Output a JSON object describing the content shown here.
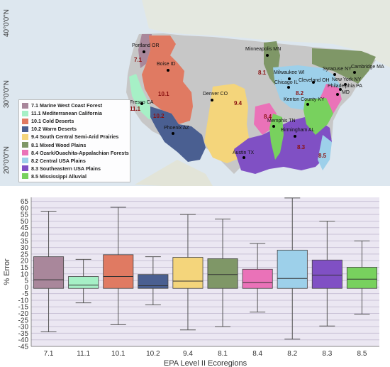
{
  "map": {
    "lat_labels": [
      "40°0'0\"N",
      "30°0'0\"N",
      "20°0'0\"N"
    ],
    "cities": [
      {
        "name": "Portland OR"
      },
      {
        "name": "Boise ID"
      },
      {
        "name": "Fresno CA"
      },
      {
        "name": "Phoenix AZ"
      },
      {
        "name": "Denver CO"
      },
      {
        "name": "Austin TX"
      },
      {
        "name": "Minneapolis MN"
      },
      {
        "name": "Milwaukee WI"
      },
      {
        "name": "Chicago IL"
      },
      {
        "name": "Cleveland OH"
      },
      {
        "name": "Memphis TN"
      },
      {
        "name": "Kenton County KY"
      },
      {
        "name": "Birmingham AL"
      },
      {
        "name": "Syracuse NY"
      },
      {
        "name": "Cambridge MA"
      },
      {
        "name": "New York NY"
      },
      {
        "name": "Philadelphia PA"
      },
      {
        "name": "MD"
      }
    ],
    "region_labels": [
      "7.1",
      "11.1",
      "10.1",
      "10.2",
      "9.4",
      "8.1",
      "8.4",
      "8.2",
      "8.3",
      "8.5"
    ],
    "legend": [
      {
        "label": "7.1 Marine West Coast Forest",
        "color": "#a9879b"
      },
      {
        "label": "11.1 Mediterranean California",
        "color": "#a6f0c6"
      },
      {
        "label": "10.1 Cold Deserts",
        "color": "#e07a62"
      },
      {
        "label": "10.2 Warm Deserts",
        "color": "#4a5f91"
      },
      {
        "label": "9.4 South Central Semi-Arid Prairies",
        "color": "#f4d57b"
      },
      {
        "label": "8.1 Mixed Wood Plains",
        "color": "#7f9767"
      },
      {
        "label": "8.4 Ozark/Ouachita-Appalachian Forests",
        "color": "#ea72b8"
      },
      {
        "label": "8.2 Central USA Plains",
        "color": "#9dd0ea"
      },
      {
        "label": "8.3 Southeastern USA Plains",
        "color": "#8050c4"
      },
      {
        "label": "8.5 Mississippi Alluvial",
        "color": "#78d15e"
      }
    ]
  },
  "chart_data": {
    "type": "box",
    "xlabel": "EPA Level II Ecoregions",
    "ylabel": "% Error",
    "ylim": [
      -45,
      68
    ],
    "yticks": [
      65,
      60,
      55,
      50,
      45,
      40,
      35,
      30,
      25,
      20,
      15,
      10,
      5,
      0,
      -5,
      -10,
      -15,
      -20,
      -25,
      -30,
      -35,
      -40,
      -45
    ],
    "grid": true,
    "categories": [
      "7.1",
      "11.1",
      "10.1",
      "10.2",
      "9.4",
      "8.1",
      "8.4",
      "8.2",
      "8.3",
      "8.5"
    ],
    "colors": [
      "#a9879b",
      "#a6f0c6",
      "#e07a62",
      "#4a5f91",
      "#f4d57b",
      "#7f9767",
      "#ea72b8",
      "#9dd0ea",
      "#8050c4",
      "#78d15e"
    ],
    "boxes": [
      {
        "whisker_low": -34,
        "q1": -1,
        "median": 5.5,
        "q3": 23,
        "whisker_high": 57.5
      },
      {
        "whisker_low": -12,
        "q1": -1,
        "median": 1.5,
        "q3": 8,
        "whisker_high": 21
      },
      {
        "whisker_low": -28.5,
        "q1": -1,
        "median": 8,
        "q3": 24.5,
        "whisker_high": 60.5
      },
      {
        "whisker_low": -13.5,
        "q1": -1,
        "median": 1,
        "q3": 9.5,
        "whisker_high": 23
      },
      {
        "whisker_low": -32.5,
        "q1": -1,
        "median": 4.5,
        "q3": 22.5,
        "whisker_high": 55
      },
      {
        "whisker_low": -30,
        "q1": -1,
        "median": 9.5,
        "q3": 21.5,
        "whisker_high": 51.5
      },
      {
        "whisker_low": -19,
        "q1": -1,
        "median": 3.5,
        "q3": 13.5,
        "whisker_high": 33
      },
      {
        "whisker_low": -39.5,
        "q1": -1,
        "median": 6.5,
        "q3": 28,
        "whisker_high": 67.5
      },
      {
        "whisker_low": -29.5,
        "q1": -1,
        "median": 9,
        "q3": 20.5,
        "whisker_high": 50
      },
      {
        "whisker_low": -20.5,
        "q1": -1,
        "median": 6,
        "q3": 15,
        "whisker_high": 35
      }
    ]
  }
}
